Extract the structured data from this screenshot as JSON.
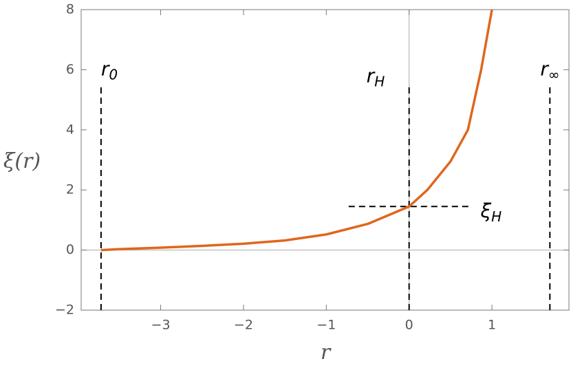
{
  "chart_data": {
    "type": "line",
    "xlabel": "r",
    "ylabel": "ξ(r)",
    "x": [
      -3.72,
      -3.5,
      -3,
      -2.5,
      -2,
      -1.5,
      -1,
      -0.5,
      0,
      0.22,
      0.5,
      0.71,
      0.87,
      1.0
    ],
    "values": [
      0,
      0.03,
      0.08,
      0.14,
      0.21,
      0.32,
      0.52,
      0.87,
      1.45,
      2.0,
      2.95,
      4.0,
      6.0,
      8.0
    ],
    "color": "#e0661c",
    "xlim": [
      -3.96,
      1.93
    ],
    "ylim": [
      -2,
      8
    ],
    "xticks": [
      {
        "value": -3,
        "label": "−3"
      },
      {
        "value": -2,
        "label": "−2"
      },
      {
        "value": -1,
        "label": "−1"
      },
      0,
      1
    ],
    "yticks": [
      {
        "value": -2,
        "label": "−2"
      },
      0,
      2,
      4,
      6,
      8
    ],
    "vlines": [
      {
        "x": -3.72,
        "y": [
          -2,
          5.5
        ],
        "label": "r",
        "sub": "0"
      },
      {
        "x": 0,
        "y": [
          -2,
          5.5
        ],
        "label": "r",
        "sub": "H"
      },
      {
        "x": 1.7,
        "y": [
          -2,
          5.5
        ],
        "label": "r",
        "sub": "∞"
      }
    ],
    "hlines": [
      {
        "y": 1.45,
        "x": [
          -0.73,
          0.73
        ],
        "label": "ξ",
        "sub": "H"
      }
    ]
  }
}
